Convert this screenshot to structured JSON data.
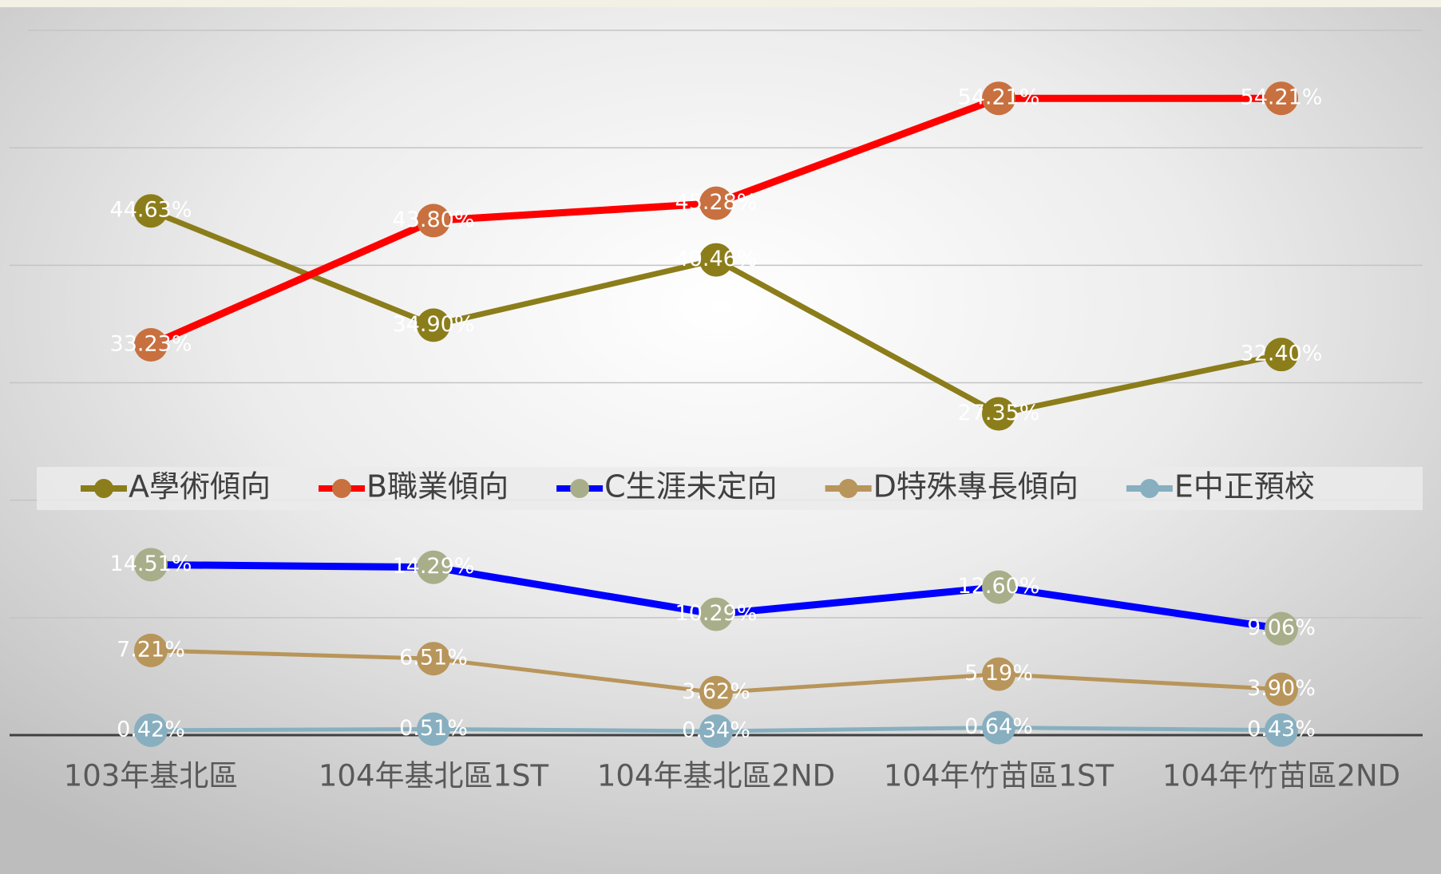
{
  "chart_data": {
    "type": "line",
    "categories": [
      "103年基北區",
      "104年基北區1ST",
      "104年基北區2ND",
      "104年竹苗區1ST",
      "104年竹苗區2ND"
    ],
    "ylim": [
      0,
      60
    ],
    "yticks": [
      0,
      10,
      20,
      30,
      40,
      50,
      60
    ],
    "grid": true,
    "legend": "center",
    "series": [
      {
        "name": "A學術傾向",
        "color": "#8b7d1a",
        "marker_color": "#8b7d1a",
        "values": [
          44.63,
          34.9,
          40.46,
          27.35,
          32.4
        ],
        "value_labels": [
          "44.63%",
          "34.90%",
          "40.46%",
          "27.35%",
          "32.40%"
        ]
      },
      {
        "name": "B職業傾向",
        "color": "#ff0000",
        "marker_color": "#c8703f",
        "values": [
          33.23,
          43.8,
          45.28,
          54.21,
          54.21
        ],
        "value_labels": [
          "33.23%",
          "43.80%",
          "45.28%",
          "54.21%",
          "54.21%"
        ]
      },
      {
        "name": "C生涯未定向",
        "color": "#0000ff",
        "marker_color": "#a9ae8a",
        "values": [
          14.51,
          14.29,
          10.29,
          12.6,
          9.06
        ],
        "value_labels": [
          "14.51%",
          "14.29%",
          "10.29%",
          "12.60%",
          "9.06%"
        ]
      },
      {
        "name": "D特殊專長傾向",
        "color": "#b8955a",
        "marker_color": "#b8955a",
        "values": [
          7.21,
          6.51,
          3.62,
          5.19,
          3.9
        ],
        "value_labels": [
          "7.21%",
          "6.51%",
          "3.62%",
          "5.19%",
          "3.90%"
        ]
      },
      {
        "name": "E中正預校",
        "color": "#87afc0",
        "marker_color": "#87afc0",
        "values": [
          0.42,
          0.51,
          0.34,
          0.64,
          0.43
        ],
        "value_labels": [
          "0.42%",
          "0.51%",
          "0.34%",
          "0.64%",
          "0.43%"
        ]
      }
    ]
  }
}
